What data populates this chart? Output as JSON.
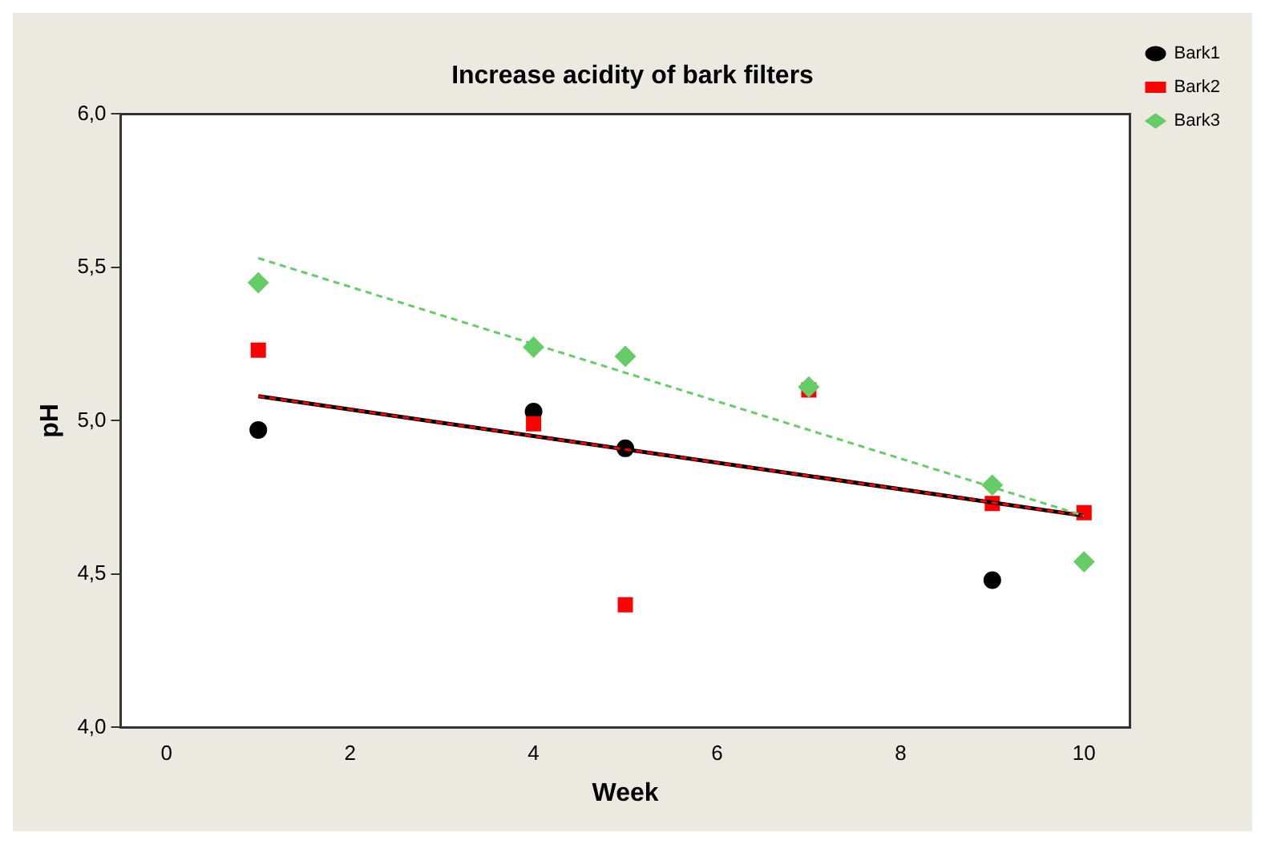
{
  "chart_data": {
    "type": "scatter",
    "title": "Increase acidity of bark filters",
    "xlabel": "Week",
    "ylabel": "pH",
    "xlim": [
      -0.5,
      10.5
    ],
    "xticks": [
      0,
      2,
      4,
      6,
      8,
      10
    ],
    "ylim": [
      4,
      6
    ],
    "yticks": [
      {
        "value": 4,
        "label": "4,0"
      },
      {
        "value": 4.5,
        "label": "4,5"
      },
      {
        "value": 5,
        "label": "5,0"
      },
      {
        "value": 5.5,
        "label": "5,5"
      },
      {
        "value": 6,
        "label": "6,0"
      }
    ],
    "grid": false,
    "legend": "right",
    "series": [
      {
        "name": "Bark1",
        "type": "scatter",
        "color": "#000000",
        "marker": "circle",
        "x": [
          1,
          4,
          5,
          9
        ],
        "values": [
          4.97,
          5.03,
          4.91,
          4.48
        ]
      },
      {
        "name": "Bark2",
        "type": "scatter",
        "color": "#ff0000",
        "marker": "square",
        "x": [
          1,
          4,
          5,
          7,
          9,
          10
        ],
        "values": [
          5.23,
          4.99,
          4.4,
          5.1,
          4.73,
          4.7
        ]
      },
      {
        "name": "Bark3",
        "type": "scatter",
        "color": "#66cc66",
        "marker": "diamond",
        "x": [
          1,
          4,
          5,
          7,
          9,
          10
        ],
        "values": [
          5.45,
          5.24,
          5.21,
          5.11,
          4.79,
          4.54
        ]
      },
      {
        "type": "line",
        "color": "#000000",
        "line_style": "solid",
        "marker": "none",
        "x": [
          1,
          10
        ],
        "values": [
          5.08,
          4.69
        ]
      },
      {
        "type": "line",
        "color": "#ff0000",
        "line_style": "dashed",
        "marker": "none",
        "x": [
          1,
          10
        ],
        "values": [
          5.08,
          4.69
        ]
      },
      {
        "type": "line",
        "color": "#66cc66",
        "line_style": "dashed",
        "marker": "none",
        "x": [
          1,
          10
        ],
        "values": [
          5.53,
          4.69
        ]
      }
    ]
  }
}
